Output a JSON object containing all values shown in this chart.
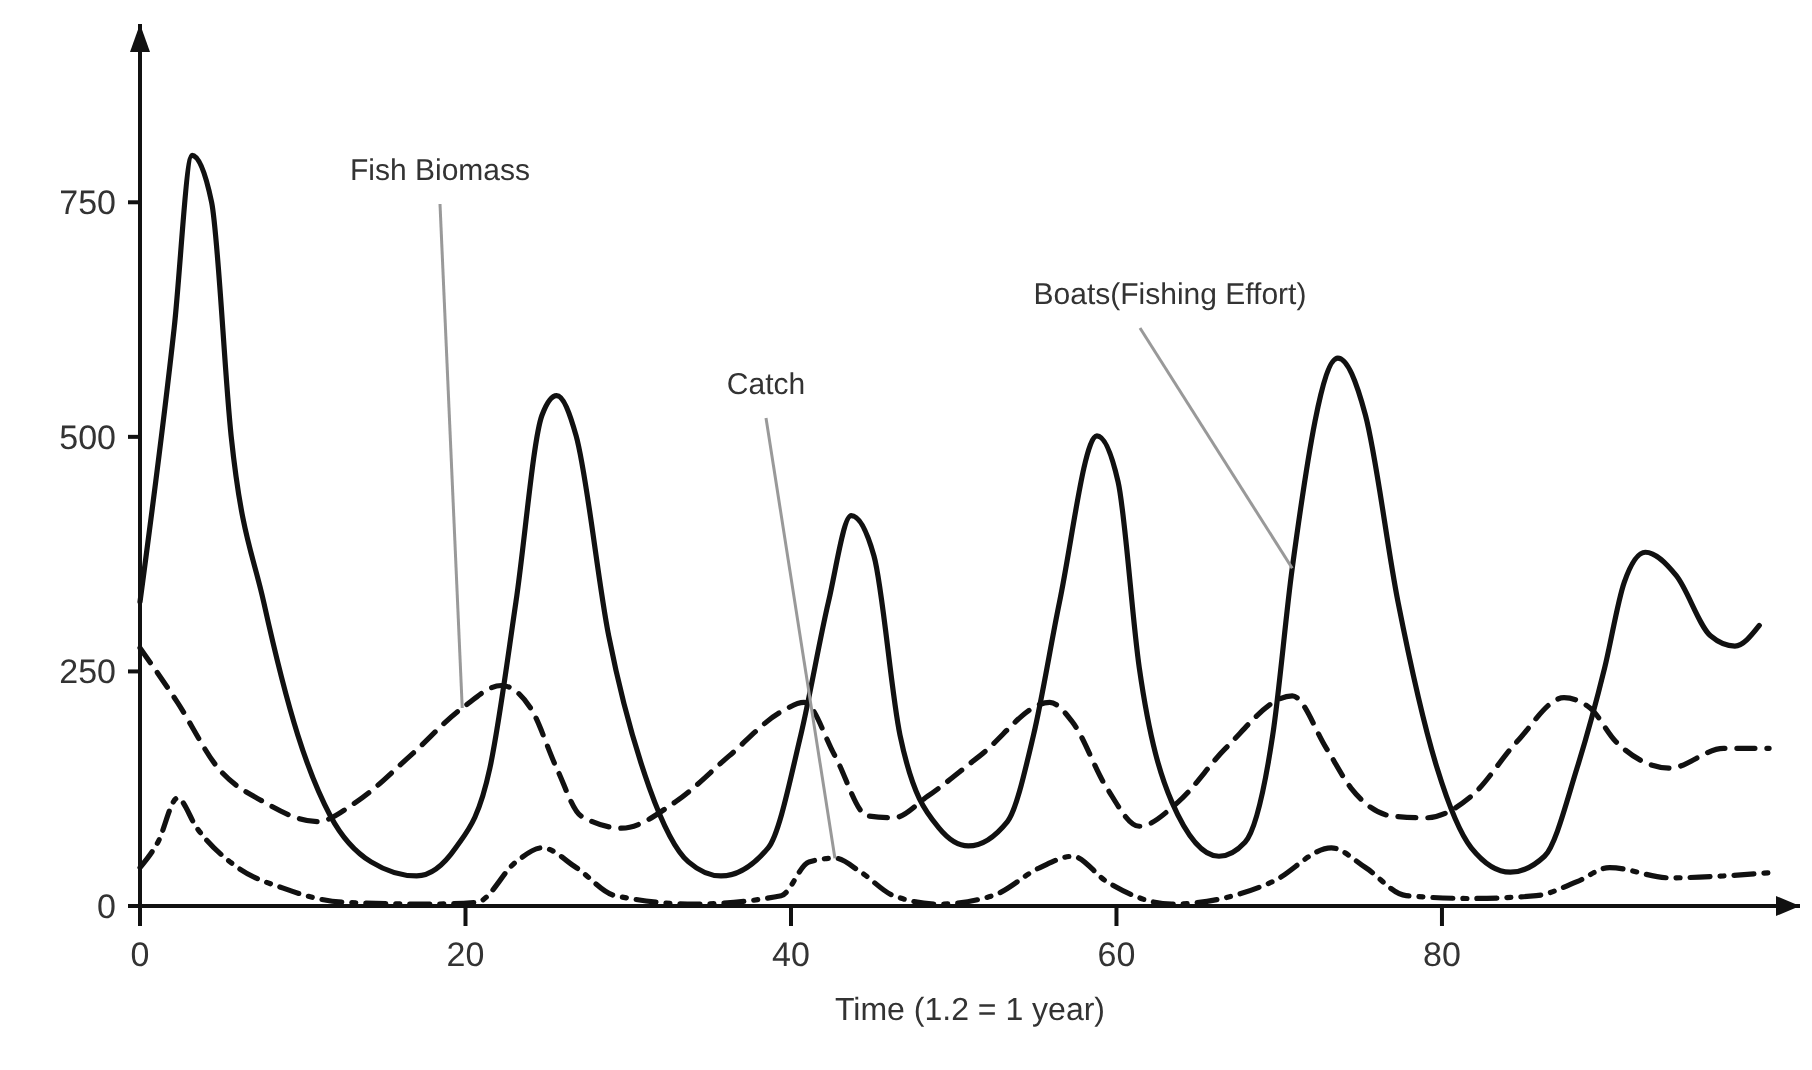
{
  "chart_data": {
    "type": "line",
    "xlabel": "Time (1.2 = 1 year)",
    "xlim": [
      0,
      102
    ],
    "xticks": [
      0,
      20,
      40,
      60,
      80
    ],
    "ylim": [
      0,
      940
    ],
    "yticks": [
      0,
      250,
      500,
      750
    ],
    "grid": false,
    "marker": "none",
    "series": [
      {
        "name": "Boats(Fishing Effort)",
        "color": "#111111",
        "line_style": "solid",
        "x": [
          0,
          2.1,
          3.2,
          4.4,
          5.6,
          7.6,
          9.7,
          11.7,
          14.2,
          17.0,
          19.4,
          21.5,
          23.1,
          24.7,
          25.6,
          26.8,
          28.8,
          31.3,
          33.7,
          35.7,
          38.6,
          40.6,
          42.3,
          43.7,
          45.1,
          46.7,
          49.1,
          50.9,
          53.3,
          54.9,
          56.5,
          58.8,
          60.1,
          61.4,
          63.4,
          66.3,
          67.9,
          69.6,
          70.8,
          73.6,
          75.3,
          77.3,
          79.7,
          81.8,
          84.2,
          86.3,
          88.3,
          90.0,
          91.2,
          92.5,
          94.4,
          96.5,
          98.0,
          99.5
        ],
        "values": [
          324,
          616,
          800,
          750,
          501,
          324,
          182,
          96,
          47,
          32,
          62,
          147,
          324,
          523,
          544,
          501,
          288,
          126,
          47,
          32,
          62,
          182,
          324,
          416,
          373,
          182,
          83,
          64,
          90,
          182,
          324,
          501,
          452,
          254,
          111,
          53,
          68,
          182,
          360,
          584,
          523,
          324,
          147,
          62,
          36,
          53,
          147,
          254,
          345,
          377,
          352,
          288,
          277,
          299
        ]
      },
      {
        "name": "Fish Biomass",
        "color": "#111111",
        "line_style": "dashed",
        "x": [
          0,
          2.3,
          4.8,
          7.6,
          10.9,
          13.3,
          16.6,
          19.8,
          22.2,
          24.0,
          25.6,
          27.1,
          29.6,
          32.9,
          36.2,
          39.4,
          40.8,
          42.7,
          44.7,
          46.3,
          48.4,
          51.6,
          55.9,
          57.3,
          59.4,
          61.4,
          63.8,
          66.7,
          70.8,
          72.9,
          74.4,
          76.9,
          79.0,
          81.8,
          84.6,
          87.5,
          89.1,
          90.7,
          94.0,
          97.3,
          100.1
        ],
        "values": [
          275,
          217,
          147,
          111,
          90,
          111,
          160,
          211,
          235,
          211,
          147,
          96,
          83,
          111,
          160,
          207,
          217,
          160,
          96,
          94,
          117,
          160,
          217,
          196,
          126,
          85,
          111,
          168,
          224,
          168,
          126,
          96,
          94,
          117,
          175,
          222,
          211,
          175,
          147,
          168,
          168
        ]
      },
      {
        "name": "Catch",
        "color": "#111111",
        "line_style": "dotted",
        "x": [
          0,
          1.1,
          2.3,
          3.5,
          6.0,
          8.8,
          12.5,
          17.8,
          20.7,
          23.1,
          24.7,
          26.8,
          29.2,
          34.1,
          39.4,
          41.1,
          42.7,
          44.3,
          46.3,
          49.1,
          52.4,
          55.3,
          57.3,
          59.4,
          63.4,
          69.6,
          73.2,
          75.3,
          77.8,
          81.8,
          85.8,
          88.3,
          90.3,
          94.0,
          97.3,
          100.5
        ],
        "values": [
          41,
          68,
          115,
          83,
          41,
          19,
          4,
          2,
          4,
          47,
          62,
          41,
          11,
          2,
          11,
          47,
          51,
          36,
          11,
          2,
          11,
          41,
          53,
          26,
          2,
          26,
          62,
          41,
          11,
          8,
          11,
          26,
          41,
          30,
          32,
          36
        ]
      }
    ]
  }
}
